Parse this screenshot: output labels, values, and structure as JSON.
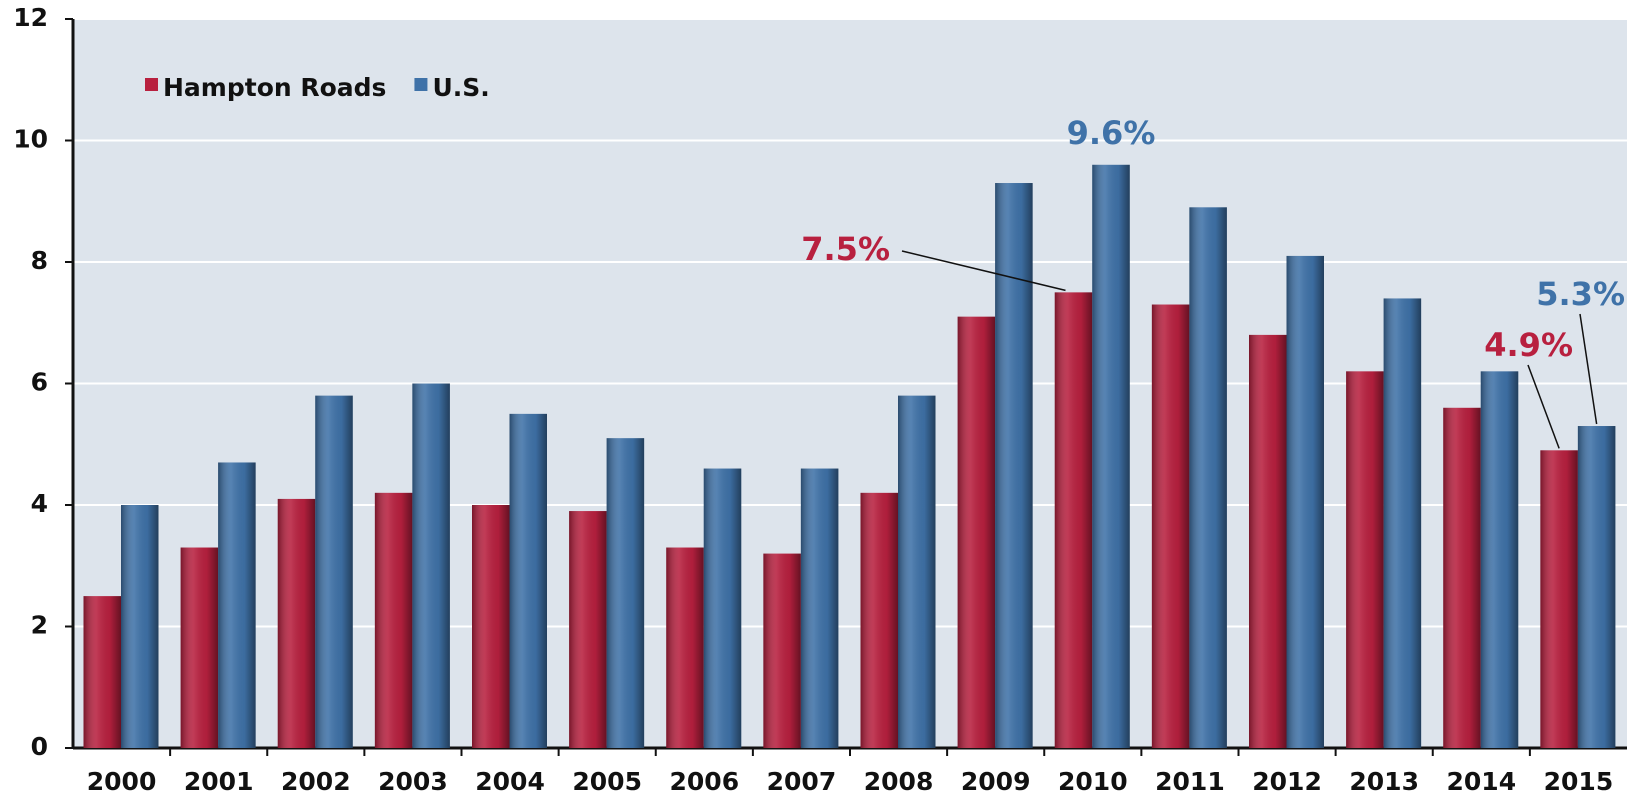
{
  "chart_data": {
    "type": "bar",
    "categories": [
      "2000",
      "2001",
      "2002",
      "2003",
      "2004",
      "2005",
      "2006",
      "2007",
      "2008",
      "2009",
      "2010",
      "2011",
      "2012",
      "2013",
      "2014",
      "2015"
    ],
    "series": [
      {
        "name": "Hampton Roads",
        "color": "#b8203f",
        "values": [
          2.5,
          3.3,
          4.1,
          4.2,
          4.0,
          3.9,
          3.3,
          3.2,
          4.2,
          7.1,
          7.5,
          7.3,
          6.8,
          6.2,
          5.6,
          4.9
        ],
        "value_labels": [
          null,
          null,
          null,
          null,
          null,
          null,
          null,
          null,
          null,
          null,
          "7.5%",
          null,
          null,
          null,
          null,
          "4.9%"
        ]
      },
      {
        "name": "U.S.",
        "color": "#3f72a8",
        "values": [
          4.0,
          4.7,
          5.8,
          6.0,
          5.5,
          5.1,
          4.6,
          4.6,
          5.8,
          9.3,
          9.6,
          8.9,
          8.1,
          7.4,
          6.2,
          5.3
        ],
        "value_labels": [
          null,
          null,
          null,
          null,
          null,
          null,
          null,
          null,
          null,
          null,
          "9.6%",
          null,
          null,
          null,
          null,
          "5.3%"
        ]
      }
    ],
    "ylim": [
      0,
      12
    ],
    "yticks": [
      0,
      2,
      4,
      6,
      8,
      10,
      12
    ],
    "grid": true,
    "legend": "upper left"
  }
}
